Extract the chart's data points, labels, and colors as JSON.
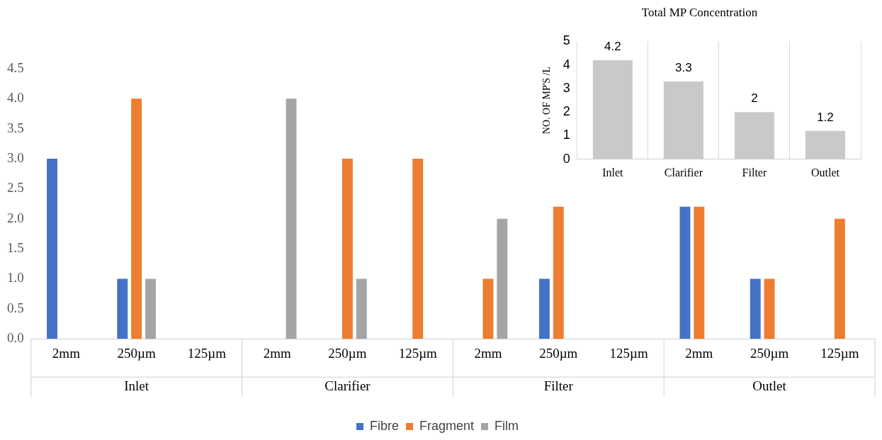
{
  "chart_data": [
    {
      "type": "bar",
      "categories": [
        "2mm",
        "250µm",
        "125µm",
        "2mm",
        "250µm",
        "125µm",
        "2mm",
        "250µm",
        "125µm",
        "2mm",
        "250µm",
        "125µm"
      ],
      "series": [
        {
          "name": "Fibre",
          "color": "#4472c4",
          "values": [
            3,
            1,
            0,
            0,
            0,
            0,
            0,
            1,
            0,
            2.2,
            1,
            0
          ]
        },
        {
          "name": "Fragment",
          "color": "#ed7d31",
          "values": [
            0,
            4,
            0,
            0,
            3,
            3,
            1,
            2.2,
            0,
            2.2,
            1,
            2
          ]
        },
        {
          "name": "Film",
          "color": "#a5a5a5",
          "values": [
            0,
            1,
            0,
            4,
            1,
            0,
            2,
            0,
            0,
            0,
            0,
            0
          ]
        }
      ],
      "ylim": [
        0,
        4.5
      ],
      "yticks": [
        {
          "value": 0,
          "label": "0.0"
        },
        {
          "value": 0.5,
          "label": "0.5"
        },
        {
          "value": 1,
          "label": "1.0"
        },
        {
          "value": 1.5,
          "label": "1.5"
        },
        {
          "value": 2,
          "label": "2.0"
        },
        {
          "value": 2.5,
          "label": "2.5"
        },
        {
          "value": 3,
          "label": "3.0"
        },
        {
          "value": 3.5,
          "label": "3.5"
        },
        {
          "value": 4,
          "label": "4.0"
        },
        {
          "value": 4.5,
          "label": "4.5"
        }
      ],
      "annotations": [
        "Inlet",
        "Clarifier",
        "Filter",
        "Outlet"
      ],
      "legend": "bottom",
      "grid": false
    },
    {
      "type": "bar",
      "title": "Total MP Concentration",
      "ylabel": "NO. OF MP'S /L",
      "categories": [
        "Inlet",
        "Clarifier",
        "Filter",
        "Outlet"
      ],
      "values": [
        4.2,
        3.3,
        2,
        1.2
      ],
      "color": "#c9c9c9",
      "ylim": [
        0,
        5
      ],
      "yticks": [
        0,
        1,
        2,
        3,
        4,
        5
      ],
      "data_labels": true,
      "grid": "x",
      "legend": false
    }
  ]
}
